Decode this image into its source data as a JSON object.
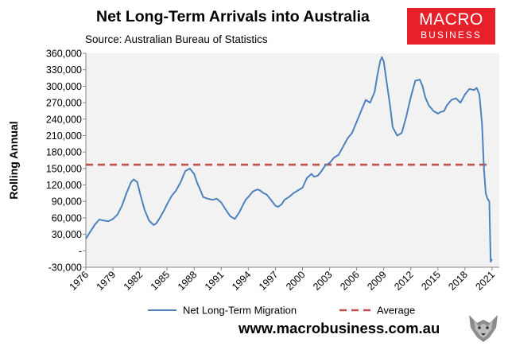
{
  "logo": {
    "line1": "MACRO",
    "line2": "BUSINESS"
  },
  "website": "www.macrobusiness.com.au",
  "colors": {
    "series": "#4f81bd",
    "average": "#c0504d",
    "plot_bg": "#f2f2f2",
    "logo_bg": "#e8202a"
  },
  "chart_data": {
    "type": "line",
    "title": "Net Long-Term Arrivals into Australia",
    "subtitle": "Source: Australian Bureau of Statistics",
    "ylabel": "Rolling Annual",
    "xlabel": "",
    "xlim": [
      1976,
      2021.8
    ],
    "ylim": [
      -30000,
      360000
    ],
    "x_ticks": [
      1976,
      1979,
      1982,
      1985,
      1988,
      1991,
      1994,
      1997,
      2000,
      2003,
      2006,
      2009,
      2012,
      2015,
      2018,
      2021
    ],
    "y_ticks": [
      {
        "value": -30000,
        "label": "-30,000"
      },
      {
        "value": 0,
        "label": "-"
      },
      {
        "value": 30000,
        "label": "30,000"
      },
      {
        "value": 60000,
        "label": "60,000"
      },
      {
        "value": 90000,
        "label": "90,000"
      },
      {
        "value": 120000,
        "label": "120,000"
      },
      {
        "value": 150000,
        "label": "150,000"
      },
      {
        "value": 180000,
        "label": "180,000"
      },
      {
        "value": 210000,
        "label": "210,000"
      },
      {
        "value": 240000,
        "label": "240,000"
      },
      {
        "value": 270000,
        "label": "270,000"
      },
      {
        "value": 300000,
        "label": "300,000"
      },
      {
        "value": 330000,
        "label": "330,000"
      },
      {
        "value": 360000,
        "label": "360,000"
      }
    ],
    "grid": false,
    "legend": "bottom",
    "series": [
      {
        "name": "Net Long-Term Migration",
        "color": "#4f81bd",
        "x": [
          1976.0,
          1976.5,
          1977.0,
          1977.5,
          1978.0,
          1978.5,
          1979.0,
          1979.5,
          1980.0,
          1980.5,
          1981.0,
          1981.3,
          1981.7,
          1982.0,
          1982.5,
          1983.0,
          1983.5,
          1983.8,
          1984.2,
          1984.7,
          1985.0,
          1985.5,
          1986.0,
          1986.5,
          1987.0,
          1987.5,
          1988.0,
          1988.3,
          1988.7,
          1989.0,
          1989.5,
          1990.0,
          1990.5,
          1991.0,
          1991.5,
          1992.0,
          1992.5,
          1993.0,
          1993.3,
          1993.7,
          1994.0,
          1994.5,
          1995.0,
          1995.3,
          1995.7,
          1996.0,
          1996.5,
          1997.0,
          1997.3,
          1997.7,
          1998.0,
          1998.5,
          1999.0,
          1999.5,
          2000.0,
          2000.5,
          2001.0,
          2001.3,
          2001.7,
          2002.0,
          2002.5,
          2003.0,
          2003.5,
          2004.0,
          2004.5,
          2005.0,
          2005.5,
          2006.0,
          2006.5,
          2007.0,
          2007.5,
          2008.0,
          2008.3,
          2008.6,
          2008.8,
          2009.0,
          2009.3,
          2009.7,
          2010.0,
          2010.5,
          2011.0,
          2011.5,
          2012.0,
          2012.5,
          2013.0,
          2013.3,
          2013.6,
          2014.0,
          2014.5,
          2015.0,
          2015.3,
          2015.7,
          2016.0,
          2016.5,
          2017.0,
          2017.5,
          2018.0,
          2018.5,
          2019.0,
          2019.3,
          2019.6,
          2019.9,
          2020.1,
          2020.3,
          2020.5,
          2020.7,
          2020.85,
          2021.0
        ],
        "y": [
          22000,
          35000,
          48000,
          57000,
          55000,
          54000,
          58000,
          66000,
          82000,
          105000,
          125000,
          130000,
          125000,
          105000,
          75000,
          55000,
          47000,
          50000,
          60000,
          75000,
          85000,
          100000,
          110000,
          125000,
          145000,
          150000,
          140000,
          125000,
          110000,
          98000,
          95000,
          93000,
          95000,
          88000,
          75000,
          63000,
          58000,
          70000,
          80000,
          93000,
          98000,
          108000,
          112000,
          110000,
          105000,
          103000,
          93000,
          82000,
          80000,
          85000,
          93000,
          98000,
          105000,
          110000,
          115000,
          133000,
          140000,
          135000,
          137000,
          143000,
          155000,
          160000,
          170000,
          175000,
          190000,
          205000,
          215000,
          235000,
          255000,
          275000,
          270000,
          290000,
          320000,
          345000,
          353000,
          345000,
          310000,
          265000,
          225000,
          210000,
          215000,
          245000,
          280000,
          310000,
          312000,
          300000,
          280000,
          265000,
          255000,
          250000,
          253000,
          255000,
          265000,
          275000,
          278000,
          270000,
          285000,
          295000,
          293000,
          297000,
          285000,
          230000,
          150000,
          105000,
          95000,
          90000,
          -20000,
          -15000
        ]
      }
    ],
    "average": {
      "name": "Average",
      "value": 157000,
      "color": "#c0504d"
    }
  }
}
